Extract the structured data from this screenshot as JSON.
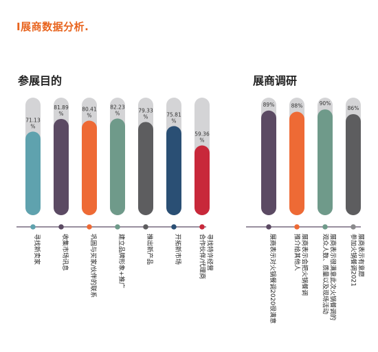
{
  "page": {
    "title": "I展商数据分析."
  },
  "colors": {
    "track": "#d4d4d6",
    "axis": "#5b4a63",
    "title": "#e8641e"
  },
  "chart_data": [
    {
      "type": "bar",
      "title": "参展目的",
      "ylim": [
        0,
        100
      ],
      "categories": [
        "寻找新卖家",
        "收集市场讯息",
        "巩固与买家/伙伴的联系",
        "建立品牌形象+推广",
        "推出新产品",
        "开拓新市场",
        "合作伙伴/代理商寻找特许经营"
      ],
      "values": [
        71.13,
        81.89,
        80.41,
        82.23,
        79.33,
        75.81,
        59.36
      ],
      "value_labels": [
        [
          "71.13",
          "%"
        ],
        [
          "81.89",
          "%"
        ],
        [
          "80.41",
          "%"
        ],
        [
          "82.23",
          "%"
        ],
        [
          "79.33",
          "%"
        ],
        [
          "75.81",
          "%"
        ],
        [
          "59.36",
          "%"
        ]
      ],
      "label_lines": [
        [
          "寻找新卖家"
        ],
        [
          "收集市场讯息"
        ],
        [
          "巩固与买家/伙伴的联系"
        ],
        [
          "建立品牌形象+推广"
        ],
        [
          "推出新产品"
        ],
        [
          "开拓新市场"
        ],
        [
          "合作伙伴/代理商",
          "寻找特许经营"
        ]
      ],
      "colors": [
        "#5fa2ae",
        "#5b4a63",
        "#ee6a35",
        "#6f9a8a",
        "#5d5d5f",
        "#2a4f74",
        "#c8283a"
      ],
      "legend_dot_colors": [
        "#5fa2ae",
        "#5b4a63",
        "#ee6a35",
        "#6f9a8a",
        "#5d5d5f",
        "#2a4f74",
        "#c8283a"
      ]
    },
    {
      "type": "bar",
      "title": "展商调研",
      "ylim": [
        0,
        100
      ],
      "categories": [
        "展商表示对火锅餐调2020很满意",
        "推介给其他人展商表示会把火锅餐调",
        "观众人数、质量以及现场活动展商表示很满意此次火锅餐调的",
        "参加火锅餐调2021展商表示有意愿"
      ],
      "values": [
        89,
        88,
        90,
        86
      ],
      "value_labels": [
        [
          "89%"
        ],
        [
          "88%"
        ],
        [
          "90%"
        ],
        [
          "86%"
        ]
      ],
      "label_lines": [
        [
          "展商表示对火锅餐调2020很满意"
        ],
        [
          "推介给其他人",
          "展商表示会把火锅餐调"
        ],
        [
          "观众人数、质量以及现场活动",
          "展商表示很满意此次火锅餐调的"
        ],
        [
          "参加火锅餐调2021",
          "展商表示有意愿"
        ]
      ],
      "colors": [
        "#5b4a63",
        "#ee6a35",
        "#6f9a8a",
        "#5d5d5f"
      ],
      "legend_dot_colors": [
        "#5b4a63",
        "#ee6a35",
        "#6f9a8a",
        "#8a8a8c"
      ]
    }
  ]
}
